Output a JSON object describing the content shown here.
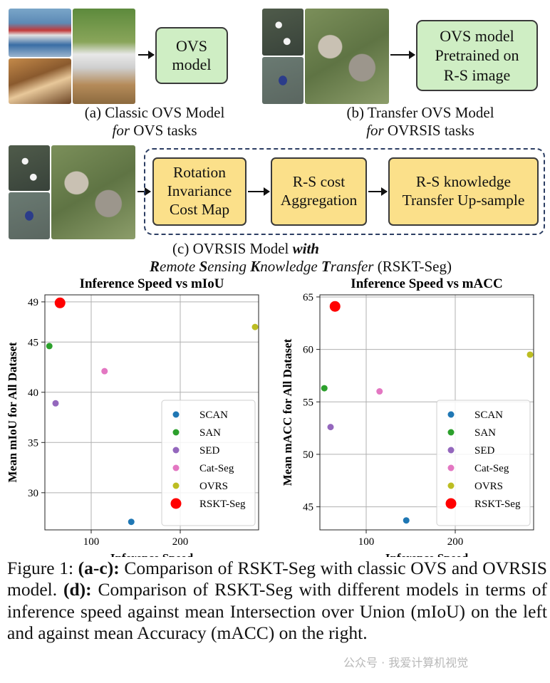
{
  "panel_a": {
    "box_text": [
      "OVS",
      "model"
    ],
    "caption_line1": "(a) Classic OVS Model",
    "caption_line2_italic": "for",
    "caption_line2_rest": " OVS tasks"
  },
  "panel_b": {
    "box_text": [
      "OVS model",
      "Pretrained on",
      "R-S image"
    ],
    "caption_line1": "(b) Transfer OVS Model",
    "caption_line2_italic": "for",
    "caption_line2_rest": " OVRSIS tasks"
  },
  "panel_c": {
    "modules": [
      [
        "Rotation",
        "Invariance",
        "Cost Map"
      ],
      [
        "R-S cost",
        "Aggregation"
      ],
      [
        "R-S knowledge",
        "Transfer Up-sample"
      ]
    ],
    "caption_line1_prefix": "(c) OVRSIS Model ",
    "caption_line1_bold": "with",
    "caption_line2": [
      {
        "b": "R",
        "t": "emote "
      },
      {
        "b": "S",
        "t": "ensing "
      },
      {
        "b": "K",
        "t": "nowledge "
      },
      {
        "b": "T",
        "t": "ransfer"
      }
    ],
    "caption_line2_suffix": " (RSKT-Seg)"
  },
  "chart_data": [
    {
      "type": "scatter",
      "title": "Inference Speed vs mIoU",
      "xlabel": "Inference Speed",
      "ylabel": "Mean mIoU for All Dataset",
      "xlim": [
        48,
        288
      ],
      "ylim": [
        26.3,
        49.7
      ],
      "xticks": [
        100,
        200
      ],
      "yticks": [
        30,
        35,
        40,
        45,
        49
      ],
      "ytick_labels": [
        "30",
        "35",
        "40",
        "45",
        "49"
      ],
      "grid": true,
      "legend_placement": "lower-right",
      "series": [
        {
          "name": "SCAN",
          "color": "#1f77b4",
          "x": 145,
          "y": 27.1,
          "size": "small"
        },
        {
          "name": "SAN",
          "color": "#2ca02c",
          "x": 53,
          "y": 44.6,
          "size": "small"
        },
        {
          "name": "SED",
          "color": "#9467bd",
          "x": 60,
          "y": 38.9,
          "size": "small"
        },
        {
          "name": "Cat-Seg",
          "color": "#e377c2",
          "x": 115,
          "y": 42.1,
          "size": "small"
        },
        {
          "name": "OVRS",
          "color": "#bcbd22",
          "x": 284,
          "y": 46.5,
          "size": "small"
        },
        {
          "name": "RSKT-Seg",
          "color": "#ff0000",
          "x": 65,
          "y": 48.9,
          "size": "large"
        }
      ]
    },
    {
      "type": "scatter",
      "title": "Inference Speed vs mACC",
      "xlabel": "Inference Speed",
      "ylabel": "Mean mACC for All Dataset",
      "xlim": [
        48,
        288
      ],
      "ylim": [
        42.8,
        65.2
      ],
      "xticks": [
        100,
        200
      ],
      "yticks": [
        45,
        50,
        55,
        60,
        65
      ],
      "ytick_labels": [
        "45",
        "50",
        "55",
        "60",
        "65"
      ],
      "grid": true,
      "legend_placement": "lower-right",
      "series": [
        {
          "name": "SCAN",
          "color": "#1f77b4",
          "x": 145,
          "y": 43.7,
          "size": "small"
        },
        {
          "name": "SAN",
          "color": "#2ca02c",
          "x": 53,
          "y": 56.3,
          "size": "small"
        },
        {
          "name": "SED",
          "color": "#9467bd",
          "x": 60,
          "y": 52.6,
          "size": "small"
        },
        {
          "name": "Cat-Seg",
          "color": "#e377c2",
          "x": 115,
          "y": 56.0,
          "size": "small"
        },
        {
          "name": "OVRS",
          "color": "#bcbd22",
          "x": 284,
          "y": 59.5,
          "size": "small"
        },
        {
          "name": "RSKT-Seg",
          "color": "#ff0000",
          "x": 65,
          "y": 64.1,
          "size": "large"
        }
      ]
    }
  ],
  "caption": {
    "prefix": "Figure 1: ",
    "bold1": "(a-c):",
    "text1": " Comparison of RSKT-Seg with classic OVS and OVRSIS model. ",
    "bold2": "(d):",
    "text2": " Comparison of RSKT-Seg with different models in terms of inference speed against mean Intersection over Union (mIoU) on the left and against mean Accuracy (mACC) on the right."
  },
  "watermark": "公众号 · 我爱计算机视觉"
}
